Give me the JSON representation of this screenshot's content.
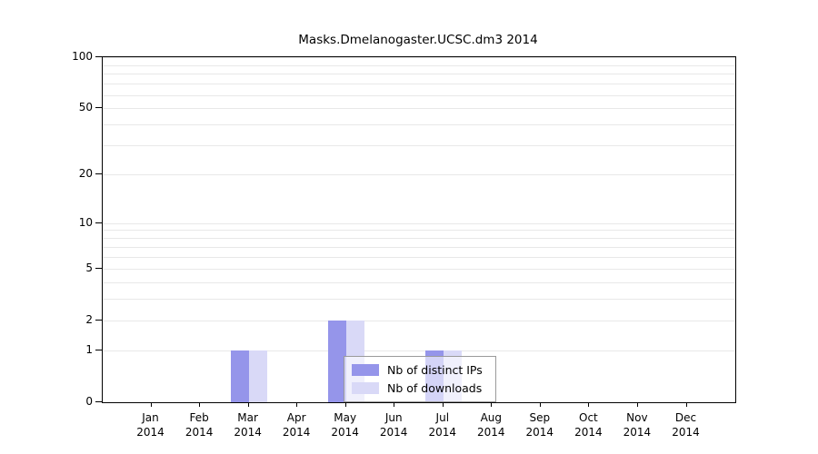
{
  "chart_data": {
    "type": "bar",
    "title": "Masks.Dmelanogaster.UCSC.dm3 2014",
    "year": "2014",
    "categories": [
      "Jan",
      "Feb",
      "Mar",
      "Apr",
      "May",
      "Jun",
      "Jul",
      "Aug",
      "Sep",
      "Oct",
      "Nov",
      "Dec"
    ],
    "series": [
      {
        "name": "Nb of distinct IPs",
        "color": "#9595ea",
        "values": [
          0,
          0,
          1,
          0,
          2,
          0,
          1,
          0,
          0,
          0,
          0,
          0
        ]
      },
      {
        "name": "Nb of downloads",
        "color": "#d9d9f7",
        "values": [
          0,
          0,
          1,
          0,
          2,
          0,
          1,
          0,
          0,
          0,
          0,
          0
        ]
      }
    ],
    "y_axis": {
      "scale": "log1p",
      "range": [
        0,
        100
      ],
      "ticks": [
        0,
        1,
        2,
        5,
        10,
        20,
        50,
        100
      ],
      "gridlines": [
        1,
        2,
        3,
        4,
        5,
        6,
        7,
        8,
        9,
        10,
        20,
        30,
        40,
        50,
        60,
        70,
        80,
        90,
        100
      ]
    },
    "legend": {
      "position": "bottom-center",
      "entries": [
        "Nb of distinct IPs",
        "Nb of downloads"
      ]
    }
  }
}
